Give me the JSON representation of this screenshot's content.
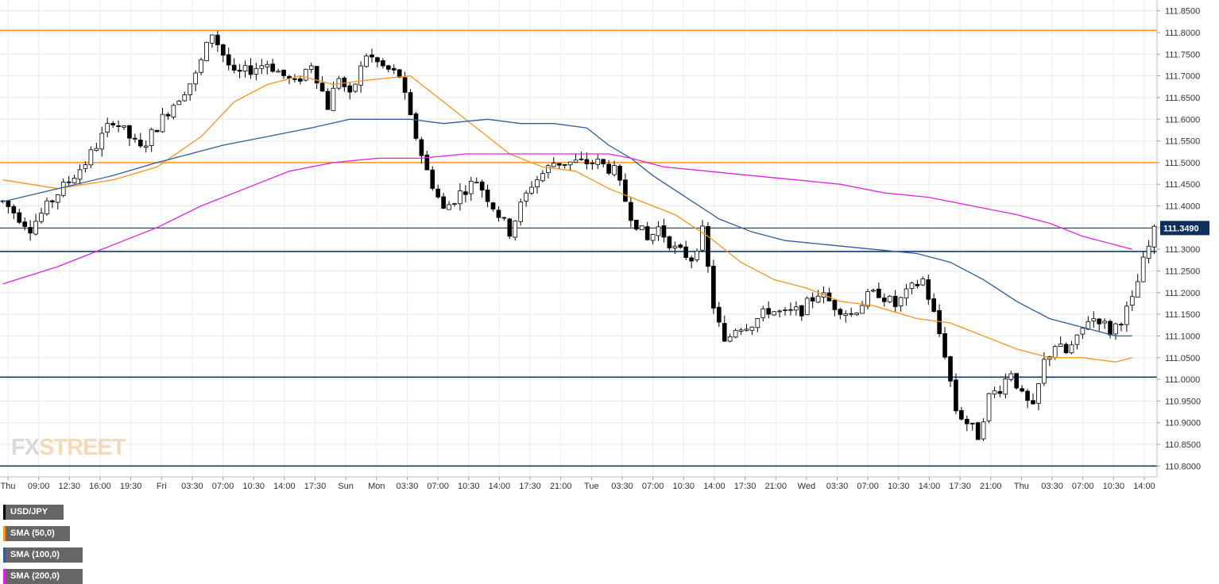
{
  "legend": [
    {
      "label": "USD/JPY",
      "color": "#000000"
    },
    {
      "label": "SMA (50,0)",
      "color": "#f7941d"
    },
    {
      "label": "SMA (100,0)",
      "color": "#2f5d9c"
    },
    {
      "label": "SMA (200,0)",
      "color": "#e020e0"
    }
  ],
  "logo": {
    "part1": "FX",
    "part2": "STREET"
  },
  "chart_data": {
    "type": "candlestick",
    "symbol": "USD/JPY",
    "ylim": [
      110.775,
      111.875
    ],
    "y_ticks": [
      "111.8500",
      "111.8000",
      "111.7500",
      "111.7000",
      "111.6500",
      "111.6000",
      "111.5500",
      "111.5000",
      "111.4500",
      "111.4000",
      "111.3500",
      "111.3000",
      "111.2500",
      "111.2000",
      "111.1500",
      "111.1000",
      "111.0500",
      "111.0000",
      "110.9500",
      "110.9000",
      "110.8500",
      "110.8000"
    ],
    "x_tick_labels": [
      "Thu",
      "09:00",
      "12:30",
      "16:00",
      "19:30",
      "Fri",
      "03:30",
      "07:00",
      "10:30",
      "14:00",
      "17:30",
      "Sun",
      "Mon",
      "03:30",
      "07:00",
      "10:30",
      "14:00",
      "17:30",
      "21:00",
      "Tue",
      "03:30",
      "07:00",
      "10:30",
      "14:00",
      "17:30",
      "21:00",
      "Wed",
      "03:30",
      "07:00",
      "10:30",
      "14:00",
      "17:30",
      "21:00",
      "Thu",
      "03:30",
      "07:00",
      "10:30",
      "14:00"
    ],
    "last_price": {
      "value": 111.349,
      "label": "111.3490",
      "color": "#0d2f5c"
    },
    "horizontal_levels": [
      {
        "value": 111.805,
        "color": "#f7941d"
      },
      {
        "value": 111.5,
        "color": "#f7941d"
      },
      {
        "value": 111.295,
        "color": "#0d3a7a"
      },
      {
        "value": 111.005,
        "color": "#0d3a7a"
      },
      {
        "value": 110.8,
        "color": "#0d3a7a"
      }
    ],
    "price_path": [
      [
        0,
        111.41
      ],
      [
        5,
        111.35
      ],
      [
        10,
        111.43
      ],
      [
        15,
        111.5
      ],
      [
        20,
        111.6
      ],
      [
        25,
        111.53
      ],
      [
        30,
        111.62
      ],
      [
        35,
        111.7
      ],
      [
        38,
        111.8
      ],
      [
        42,
        111.7
      ],
      [
        48,
        111.73
      ],
      [
        53,
        111.68
      ],
      [
        56,
        111.73
      ],
      [
        59,
        111.63
      ],
      [
        61,
        111.7
      ],
      [
        63,
        111.65
      ],
      [
        66,
        111.75
      ],
      [
        69,
        111.72
      ],
      [
        72,
        111.7
      ],
      [
        74,
        111.6
      ],
      [
        77,
        111.48
      ],
      [
        80,
        111.39
      ],
      [
        83,
        111.43
      ],
      [
        86,
        111.46
      ],
      [
        89,
        111.4
      ],
      [
        92,
        111.34
      ],
      [
        94,
        111.4
      ],
      [
        96,
        111.45
      ],
      [
        100,
        111.5
      ],
      [
        104,
        111.5
      ],
      [
        108,
        111.5
      ],
      [
        111,
        111.48
      ],
      [
        114,
        111.38
      ],
      [
        117,
        111.32
      ],
      [
        119,
        111.35
      ],
      [
        122,
        111.3
      ],
      [
        125,
        111.28
      ],
      [
        127,
        111.34
      ],
      [
        129,
        111.17
      ],
      [
        131,
        111.08
      ],
      [
        133,
        111.12
      ],
      [
        136,
        111.13
      ],
      [
        139,
        111.16
      ],
      [
        142,
        111.15
      ],
      [
        145,
        111.16
      ],
      [
        148,
        111.2
      ],
      [
        151,
        111.17
      ],
      [
        154,
        111.15
      ],
      [
        157,
        111.19
      ],
      [
        159,
        111.2
      ],
      [
        162,
        111.17
      ],
      [
        165,
        111.21
      ],
      [
        167,
        111.23
      ],
      [
        169,
        111.15
      ],
      [
        171,
        111.06
      ],
      [
        173,
        110.93
      ],
      [
        175,
        110.9
      ],
      [
        177,
        110.87
      ],
      [
        179,
        110.96
      ],
      [
        181,
        110.98
      ],
      [
        183,
        111.02
      ],
      [
        185,
        110.96
      ],
      [
        187,
        110.93
      ],
      [
        189,
        111.04
      ],
      [
        191,
        111.08
      ],
      [
        193,
        111.06
      ],
      [
        195,
        111.09
      ],
      [
        197,
        111.14
      ],
      [
        199,
        111.14
      ],
      [
        201,
        111.11
      ],
      [
        203,
        111.14
      ],
      [
        205,
        111.18
      ],
      [
        207,
        111.27
      ],
      [
        209,
        111.34
      ]
    ],
    "series": [
      {
        "name": "SMA (50,0)",
        "color": "#f7941d",
        "values": [
          [
            0,
            111.46
          ],
          [
            10,
            111.44
          ],
          [
            20,
            111.46
          ],
          [
            28,
            111.49
          ],
          [
            36,
            111.56
          ],
          [
            42,
            111.64
          ],
          [
            48,
            111.68
          ],
          [
            54,
            111.7
          ],
          [
            60,
            111.68
          ],
          [
            66,
            111.69
          ],
          [
            74,
            111.7
          ],
          [
            80,
            111.64
          ],
          [
            86,
            111.58
          ],
          [
            92,
            111.52
          ],
          [
            98,
            111.49
          ],
          [
            104,
            111.48
          ],
          [
            110,
            111.44
          ],
          [
            116,
            111.41
          ],
          [
            122,
            111.38
          ],
          [
            128,
            111.33
          ],
          [
            134,
            111.27
          ],
          [
            140,
            111.23
          ],
          [
            146,
            111.21
          ],
          [
            152,
            111.18
          ],
          [
            158,
            111.17
          ],
          [
            166,
            111.14
          ],
          [
            172,
            111.13
          ],
          [
            178,
            111.1
          ],
          [
            184,
            111.07
          ],
          [
            190,
            111.05
          ],
          [
            196,
            111.05
          ],
          [
            202,
            111.04
          ],
          [
            205,
            111.05
          ]
        ]
      },
      {
        "name": "SMA (100,0)",
        "color": "#2f5d9c",
        "values": [
          [
            0,
            111.41
          ],
          [
            10,
            111.44
          ],
          [
            20,
            111.47
          ],
          [
            28,
            111.5
          ],
          [
            34,
            111.52
          ],
          [
            40,
            111.54
          ],
          [
            48,
            111.56
          ],
          [
            56,
            111.58
          ],
          [
            63,
            111.6
          ],
          [
            68,
            111.6
          ],
          [
            74,
            111.6
          ],
          [
            80,
            111.59
          ],
          [
            88,
            111.6
          ],
          [
            94,
            111.59
          ],
          [
            100,
            111.59
          ],
          [
            106,
            111.58
          ],
          [
            110,
            111.54
          ],
          [
            114,
            111.51
          ],
          [
            118,
            111.47
          ],
          [
            124,
            111.42
          ],
          [
            130,
            111.37
          ],
          [
            136,
            111.34
          ],
          [
            142,
            111.32
          ],
          [
            150,
            111.31
          ],
          [
            158,
            111.3
          ],
          [
            166,
            111.29
          ],
          [
            172,
            111.27
          ],
          [
            178,
            111.23
          ],
          [
            184,
            111.18
          ],
          [
            190,
            111.14
          ],
          [
            196,
            111.12
          ],
          [
            202,
            111.1
          ],
          [
            205,
            111.1
          ]
        ]
      },
      {
        "name": "SMA (200,0)",
        "color": "#e020e0",
        "values": [
          [
            0,
            111.22
          ],
          [
            10,
            111.26
          ],
          [
            20,
            111.31
          ],
          [
            28,
            111.35
          ],
          [
            36,
            111.4
          ],
          [
            44,
            111.44
          ],
          [
            52,
            111.48
          ],
          [
            60,
            111.5
          ],
          [
            68,
            111.51
          ],
          [
            76,
            111.51
          ],
          [
            84,
            111.52
          ],
          [
            94,
            111.52
          ],
          [
            102,
            111.52
          ],
          [
            110,
            111.52
          ],
          [
            114,
            111.51
          ],
          [
            120,
            111.49
          ],
          [
            128,
            111.48
          ],
          [
            136,
            111.47
          ],
          [
            144,
            111.46
          ],
          [
            152,
            111.45
          ],
          [
            160,
            111.43
          ],
          [
            168,
            111.42
          ],
          [
            176,
            111.4
          ],
          [
            184,
            111.38
          ],
          [
            190,
            111.36
          ],
          [
            196,
            111.33
          ],
          [
            202,
            111.31
          ],
          [
            205,
            111.3
          ]
        ]
      }
    ]
  }
}
